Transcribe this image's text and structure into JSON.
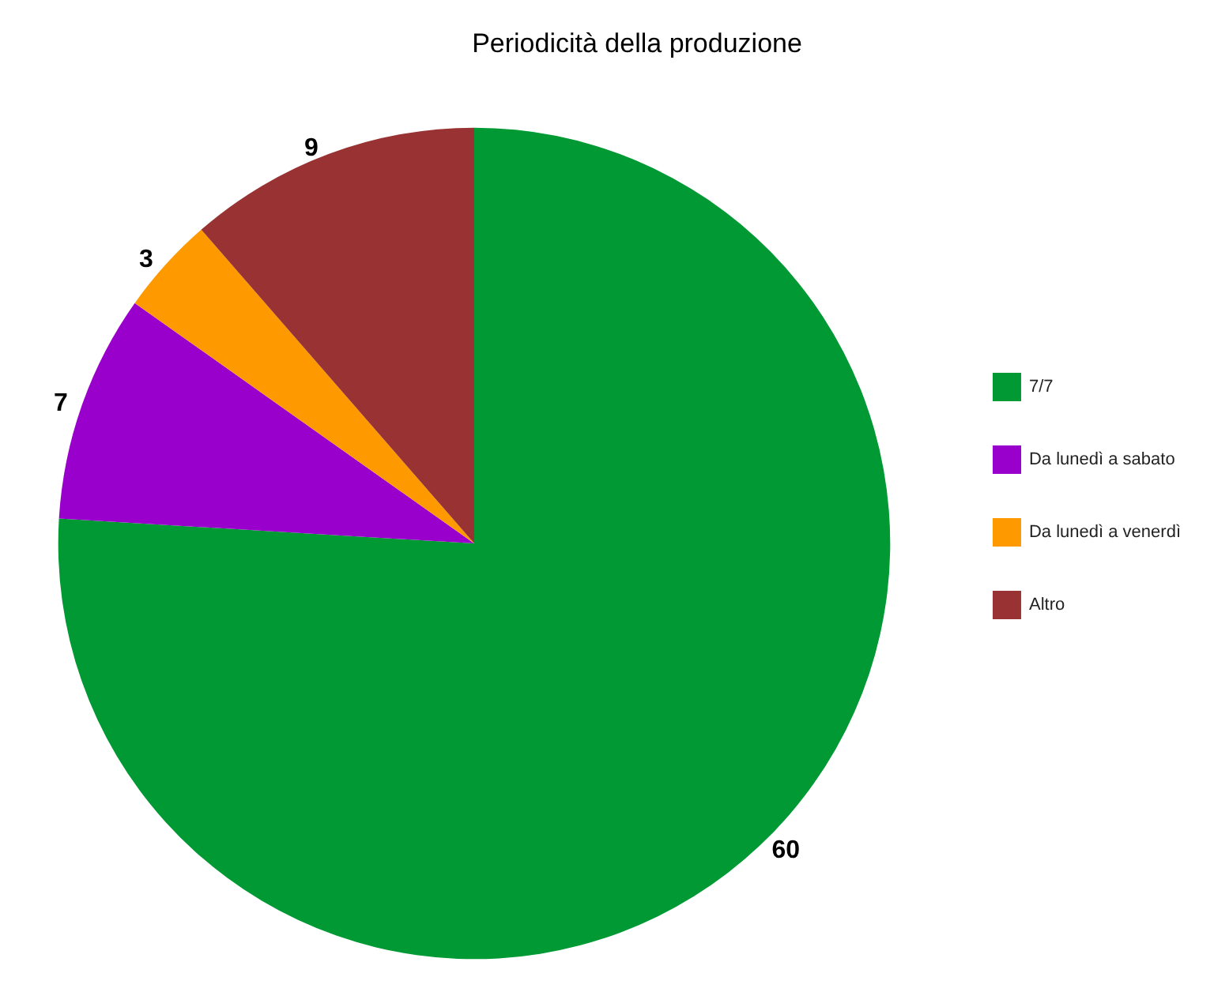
{
  "chart_data": {
    "type": "pie",
    "title": "Periodicità della produzione",
    "categories": [
      "7/7",
      "Da lunedì a sabato",
      "Da lunedì a venerdì",
      "Altro"
    ],
    "values": [
      60,
      7,
      3,
      9
    ],
    "colors": [
      "#009933",
      "#9900cc",
      "#ff9900",
      "#993333"
    ],
    "data_labels": true,
    "legend": "right"
  }
}
